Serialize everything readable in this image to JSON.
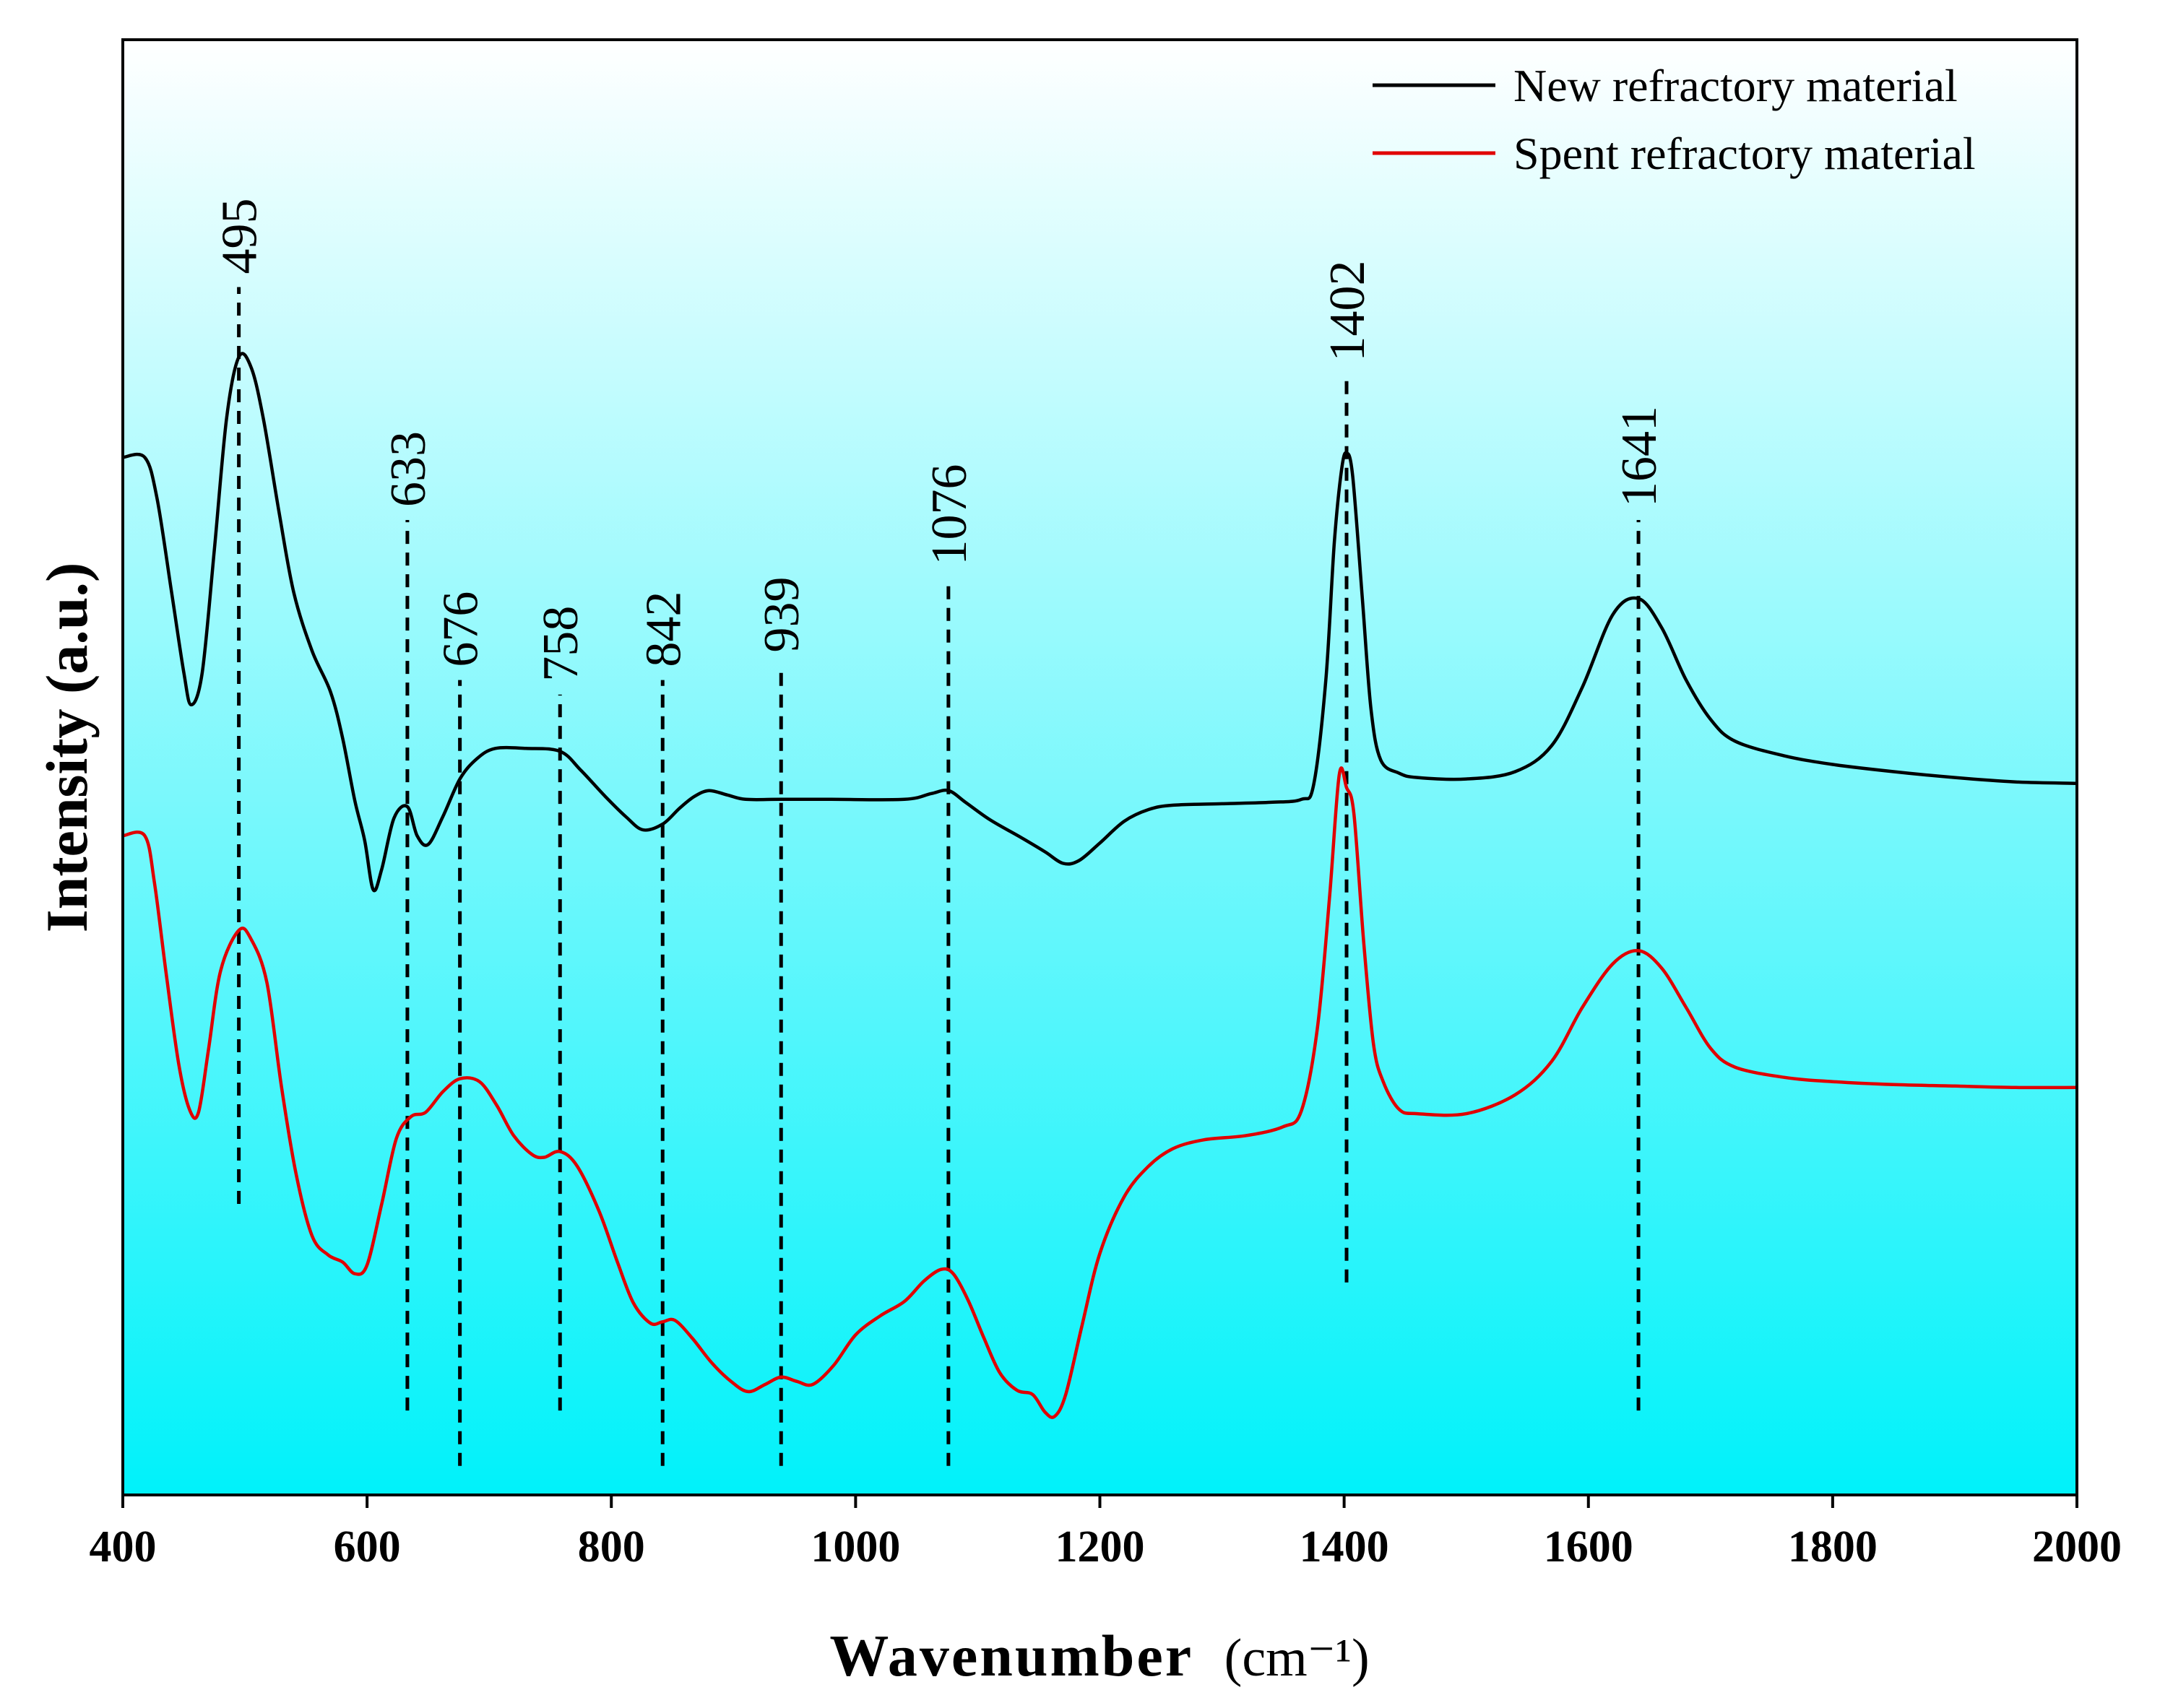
{
  "chart_data": {
    "type": "line",
    "title": "",
    "xlabel": "Wavenumber",
    "xlabel_unit": "(cm⁻¹)",
    "ylabel": "Intensity (a.u.)",
    "xlim": [
      400,
      2000
    ],
    "ylim": [
      0,
      100
    ],
    "x_ticks": [
      400,
      600,
      800,
      1000,
      1200,
      1400,
      1600,
      1800,
      2000
    ],
    "y_ticks_visible": false,
    "grid": false,
    "legend_position": "top-right",
    "background_gradient": [
      "#ffffff",
      "#00f2fa"
    ],
    "series": [
      {
        "name": "New refractory material",
        "color": "#000000",
        "points": [
          [
            400,
            71.3
          ],
          [
            418,
            71.3
          ],
          [
            428,
            68.5
          ],
          [
            440,
            62
          ],
          [
            450,
            56.5
          ],
          [
            456,
            54.3
          ],
          [
            465,
            56.5
          ],
          [
            475,
            65
          ],
          [
            485,
            74
          ],
          [
            495,
            78.2
          ],
          [
            505,
            77.5
          ],
          [
            515,
            74
          ],
          [
            528,
            67.5
          ],
          [
            540,
            62
          ],
          [
            555,
            58
          ],
          [
            570,
            55.2
          ],
          [
            580,
            52
          ],
          [
            590,
            47.7
          ],
          [
            598,
            45
          ],
          [
            605,
            41.6
          ],
          [
            612,
            43
          ],
          [
            622,
            46.5
          ],
          [
            633,
            47.3
          ],
          [
            641,
            45.3
          ],
          [
            650,
            44.7
          ],
          [
            662,
            46.6
          ],
          [
            676,
            49.2
          ],
          [
            690,
            50.6
          ],
          [
            705,
            51.3
          ],
          [
            730,
            51.3
          ],
          [
            758,
            51.1
          ],
          [
            775,
            49.8
          ],
          [
            795,
            48
          ],
          [
            812,
            46.6
          ],
          [
            826,
            45.7
          ],
          [
            842,
            46.1
          ],
          [
            856,
            47.2
          ],
          [
            868,
            48
          ],
          [
            880,
            48.4
          ],
          [
            895,
            48.1
          ],
          [
            910,
            47.8
          ],
          [
            939,
            47.8
          ],
          [
            980,
            47.8
          ],
          [
            1040,
            47.8
          ],
          [
            1062,
            48.2
          ],
          [
            1076,
            48.4
          ],
          [
            1090,
            47.6
          ],
          [
            1110,
            46.4
          ],
          [
            1135,
            45.2
          ],
          [
            1155,
            44.2
          ],
          [
            1170,
            43.4
          ],
          [
            1183,
            43.6
          ],
          [
            1200,
            44.8
          ],
          [
            1220,
            46.3
          ],
          [
            1240,
            47.1
          ],
          [
            1260,
            47.4
          ],
          [
            1300,
            47.5
          ],
          [
            1340,
            47.6
          ],
          [
            1365,
            47.8
          ],
          [
            1375,
            48.8
          ],
          [
            1385,
            56
          ],
          [
            1392,
            65.5
          ],
          [
            1398,
            70.5
          ],
          [
            1402,
            71.6
          ],
          [
            1407,
            70
          ],
          [
            1415,
            61.5
          ],
          [
            1422,
            54
          ],
          [
            1430,
            50.5
          ],
          [
            1445,
            49.6
          ],
          [
            1460,
            49.3
          ],
          [
            1500,
            49.2
          ],
          [
            1540,
            49.7
          ],
          [
            1570,
            51.5
          ],
          [
            1595,
            55.5
          ],
          [
            1620,
            60.5
          ],
          [
            1641,
            61.6
          ],
          [
            1660,
            59.6
          ],
          [
            1680,
            56
          ],
          [
            1700,
            53.3
          ],
          [
            1720,
            51.8
          ],
          [
            1760,
            50.8
          ],
          [
            1800,
            50.2
          ],
          [
            1850,
            49.7
          ],
          [
            1900,
            49.3
          ],
          [
            1950,
            49
          ],
          [
            2000,
            48.9
          ]
        ]
      },
      {
        "name": "Spent refractory material",
        "color": "#e00000",
        "points": [
          [
            400,
            45.3
          ],
          [
            418,
            45.3
          ],
          [
            426,
            42
          ],
          [
            436,
            35.5
          ],
          [
            446,
            29.5
          ],
          [
            455,
            26.4
          ],
          [
            462,
            26.3
          ],
          [
            470,
            30.5
          ],
          [
            480,
            36
          ],
          [
            495,
            38.8
          ],
          [
            505,
            38.2
          ],
          [
            518,
            35.2
          ],
          [
            530,
            28
          ],
          [
            542,
            22
          ],
          [
            555,
            17.8
          ],
          [
            568,
            16.5
          ],
          [
            580,
            16
          ],
          [
            590,
            15.2
          ],
          [
            600,
            15.8
          ],
          [
            612,
            20
          ],
          [
            624,
            24.5
          ],
          [
            636,
            26
          ],
          [
            648,
            26.3
          ],
          [
            662,
            27.7
          ],
          [
            676,
            28.6
          ],
          [
            692,
            28.4
          ],
          [
            706,
            26.8
          ],
          [
            720,
            24.7
          ],
          [
            735,
            23.4
          ],
          [
            745,
            23.2
          ],
          [
            758,
            23.6
          ],
          [
            772,
            22.6
          ],
          [
            790,
            19.5
          ],
          [
            805,
            16
          ],
          [
            818,
            13.2
          ],
          [
            832,
            11.8
          ],
          [
            842,
            11.9
          ],
          [
            852,
            12
          ],
          [
            866,
            10.8
          ],
          [
            882,
            9.1
          ],
          [
            898,
            7.8
          ],
          [
            912,
            7.1
          ],
          [
            926,
            7.6
          ],
          [
            939,
            8.1
          ],
          [
            952,
            7.8
          ],
          [
            965,
            7.6
          ],
          [
            982,
            8.9
          ],
          [
            1000,
            11
          ],
          [
            1020,
            12.3
          ],
          [
            1040,
            13.3
          ],
          [
            1056,
            14.7
          ],
          [
            1070,
            15.5
          ],
          [
            1080,
            15.2
          ],
          [
            1092,
            13.4
          ],
          [
            1105,
            10.8
          ],
          [
            1118,
            8.4
          ],
          [
            1132,
            7.2
          ],
          [
            1145,
            6.9
          ],
          [
            1155,
            5.7
          ],
          [
            1163,
            5.4
          ],
          [
            1172,
            6.9
          ],
          [
            1185,
            11.5
          ],
          [
            1200,
            16.6
          ],
          [
            1220,
            20.5
          ],
          [
            1240,
            22.6
          ],
          [
            1260,
            23.8
          ],
          [
            1285,
            24.4
          ],
          [
            1320,
            24.7
          ],
          [
            1350,
            25.3
          ],
          [
            1365,
            26.4
          ],
          [
            1378,
            32
          ],
          [
            1388,
            41
          ],
          [
            1396,
            49.5
          ],
          [
            1402,
            48.6
          ],
          [
            1408,
            46.8
          ],
          [
            1416,
            38
          ],
          [
            1424,
            31
          ],
          [
            1432,
            28.4
          ],
          [
            1445,
            26.5
          ],
          [
            1460,
            26.2
          ],
          [
            1500,
            26.2
          ],
          [
            1540,
            27.5
          ],
          [
            1570,
            29.8
          ],
          [
            1595,
            33.5
          ],
          [
            1620,
            36.5
          ],
          [
            1641,
            37.4
          ],
          [
            1660,
            36.2
          ],
          [
            1680,
            33.5
          ],
          [
            1700,
            30.7
          ],
          [
            1720,
            29.4
          ],
          [
            1760,
            28.7
          ],
          [
            1800,
            28.4
          ],
          [
            1850,
            28.2
          ],
          [
            1900,
            28.1
          ],
          [
            1950,
            28
          ],
          [
            2000,
            28
          ]
        ]
      }
    ],
    "annotations": [
      {
        "label": "495",
        "x": 495,
        "y_start": 20,
        "y_end": 83
      },
      {
        "label": "633",
        "x": 633,
        "y_start": 5.8,
        "y_end": 67
      },
      {
        "label": "676",
        "x": 676,
        "y_start": 2,
        "y_end": 56
      },
      {
        "label": "758",
        "x": 758,
        "y_start": 5.8,
        "y_end": 55
      },
      {
        "label": "842",
        "x": 842,
        "y_start": 2,
        "y_end": 56
      },
      {
        "label": "939",
        "x": 939,
        "y_start": 2,
        "y_end": 57
      },
      {
        "label": "1076",
        "x": 1076,
        "y_start": 2,
        "y_end": 63
      },
      {
        "label": "1402",
        "x": 1402,
        "y_start": 14.6,
        "y_end": 77
      },
      {
        "label": "1641",
        "x": 1641,
        "y_start": 5.8,
        "y_end": 67
      }
    ]
  }
}
